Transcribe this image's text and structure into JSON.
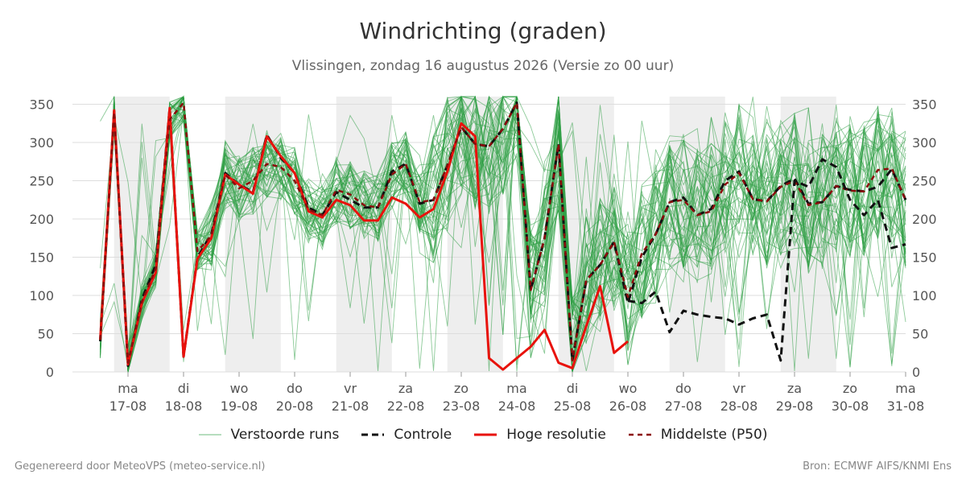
{
  "chart_data": {
    "type": "line",
    "title": "Windrichting (graden)",
    "subtitle": "Vlissingen, zondag 16 augustus 2026 (Versie zo 00 uur)",
    "ylim": [
      0,
      360
    ],
    "yticks": [
      0,
      50,
      100,
      150,
      200,
      250,
      300,
      350
    ],
    "xlim": [
      16.0,
      31.0
    ],
    "x_ticks": [
      {
        "x": 17,
        "day": "ma",
        "date": "17-08"
      },
      {
        "x": 18,
        "day": "di",
        "date": "18-08"
      },
      {
        "x": 19,
        "day": "wo",
        "date": "19-08"
      },
      {
        "x": 20,
        "day": "do",
        "date": "20-08"
      },
      {
        "x": 21,
        "day": "vr",
        "date": "21-08"
      },
      {
        "x": 22,
        "day": "za",
        "date": "22-08"
      },
      {
        "x": 23,
        "day": "zo",
        "date": "23-08"
      },
      {
        "x": 24,
        "day": "ma",
        "date": "24-08"
      },
      {
        "x": 25,
        "day": "di",
        "date": "25-08"
      },
      {
        "x": 26,
        "day": "wo",
        "date": "26-08"
      },
      {
        "x": 27,
        "day": "do",
        "date": "27-08"
      },
      {
        "x": 28,
        "day": "vr",
        "date": "28-08"
      },
      {
        "x": 29,
        "day": "za",
        "date": "29-08"
      },
      {
        "x": 30,
        "day": "zo",
        "date": "30-08"
      },
      {
        "x": 31,
        "day": "ma",
        "date": "31-08"
      }
    ],
    "shaded_bands": [
      [
        16.75,
        17.75
      ],
      [
        18.75,
        19.75
      ],
      [
        20.75,
        21.75
      ],
      [
        22.75,
        23.75
      ],
      [
        24.75,
        25.75
      ],
      [
        26.75,
        27.75
      ],
      [
        28.75,
        29.75
      ]
    ],
    "grid": true,
    "legend_position": "bottom",
    "series": [
      {
        "name": "Controle",
        "color": "#111111",
        "style": "dashed",
        "x": [
          16.5,
          16.75,
          17.0,
          17.25,
          17.5,
          17.75,
          18.0,
          18.25,
          18.5,
          18.75,
          19.0,
          19.25,
          19.5,
          19.75,
          20.0,
          20.25,
          20.5,
          20.75,
          21.0,
          21.25,
          21.5,
          21.75,
          22.0,
          22.25,
          22.5,
          22.75,
          23.0,
          23.25,
          23.5,
          23.75,
          24.0,
          24.25,
          24.5,
          24.75,
          25.0,
          25.25,
          25.5,
          25.75,
          26.0,
          26.25,
          26.5,
          26.75,
          27.0,
          27.25,
          27.5,
          27.75,
          28.0,
          28.25,
          28.5,
          28.75,
          29.0,
          29.25,
          29.5,
          29.75,
          30.0,
          30.25,
          30.5,
          30.75,
          31.0
        ],
        "values": [
          40,
          340,
          8,
          95,
          140,
          345,
          20,
          150,
          180,
          260,
          245,
          235,
          310,
          280,
          260,
          215,
          205,
          235,
          225,
          215,
          215,
          262,
          272,
          220,
          225,
          270,
          320,
          298,
          295,
          318,
          352,
          107,
          175,
          298,
          15,
          120,
          140,
          170,
          90,
          150,
          180,
          222,
          228,
          205,
          213,
          250,
          262,
          226,
          223,
          243,
          253,
          220,
          222,
          243,
          238,
          236,
          242,
          265,
          225
        ]
      },
      {
        "name": "Hoge resolutie",
        "color": "#e8120c",
        "style": "solid",
        "x": [
          16.5,
          16.75,
          17.0,
          17.25,
          17.5,
          17.75,
          18.0,
          18.25,
          18.5,
          18.75,
          19.0,
          19.25,
          19.5,
          19.75,
          20.0,
          20.25,
          20.5,
          20.75,
          21.0,
          21.25,
          21.5,
          21.75,
          22.0,
          22.25,
          22.5,
          22.75,
          23.0,
          23.25,
          23.5,
          23.75,
          24.0,
          24.25,
          24.5,
          24.75,
          25.0,
          25.25,
          25.5,
          25.75,
          26.0
        ],
        "values": [
          42,
          342,
          10,
          90,
          130,
          345,
          20,
          148,
          175,
          258,
          245,
          233,
          308,
          282,
          260,
          210,
          202,
          225,
          218,
          198,
          198,
          228,
          220,
          202,
          213,
          262,
          325,
          308,
          18,
          3,
          18,
          33,
          55,
          12,
          5,
          60,
          112,
          25,
          40
        ]
      },
      {
        "name": "Middelste (P50)",
        "color": "#8b0c0c",
        "style": "dashed",
        "x": [
          16.5,
          16.75,
          17.0,
          17.25,
          17.5,
          17.75,
          18.0,
          18.25,
          18.5,
          18.75,
          19.0,
          19.25,
          19.5,
          19.75,
          20.0,
          20.25,
          20.5,
          20.75,
          21.0,
          21.25,
          21.5,
          21.75,
          22.0,
          22.25,
          22.5,
          22.75,
          23.0,
          23.25,
          23.5,
          23.75,
          24.0,
          24.25,
          24.5,
          24.75,
          25.0,
          25.25,
          25.5,
          25.75,
          26.0,
          26.25,
          26.5,
          26.75,
          27.0,
          27.25,
          27.5,
          27.75,
          28.0,
          28.25,
          28.5,
          28.75,
          29.0,
          29.25,
          29.5,
          29.75,
          30.0,
          30.25,
          30.5,
          30.75,
          31.0
        ],
        "values": [
          42,
          340,
          12,
          92,
          135,
          330,
          352,
          158,
          178,
          258,
          240,
          250,
          272,
          268,
          250,
          212,
          205,
          238,
          232,
          218,
          215,
          258,
          272,
          222,
          225,
          270,
          320,
          298,
          295,
          318,
          352,
          107,
          175,
          298,
          15,
          120,
          140,
          170,
          98,
          155,
          180,
          222,
          225,
          205,
          210,
          245,
          260,
          226,
          223,
          242,
          250,
          218,
          222,
          243,
          237,
          236,
          264,
          266,
          225
        ]
      },
      {
        "name": "Controle (vervolg)",
        "color": "#111111",
        "style": "dashed",
        "x": [
          26.0,
          26.25,
          26.5,
          26.75,
          27.0,
          27.25,
          27.5,
          27.75,
          28.0,
          28.25,
          28.5,
          28.75,
          29.0,
          29.25,
          29.5,
          29.75,
          30.0,
          30.25,
          30.5,
          30.75,
          31.0
        ],
        "values": [
          93,
          90,
          105,
          52,
          80,
          75,
          72,
          70,
          62,
          70,
          75,
          15,
          250,
          242,
          278,
          268,
          225,
          205,
          225,
          162,
          167
        ]
      }
    ],
    "ensemble_members": {
      "name": "Verstoorde runs",
      "color": "#2e9e44",
      "count": 50
    }
  },
  "legend": {
    "members": "Verstoorde runs",
    "control": "Controle",
    "highres": "Hoge resolutie",
    "median": "Middelste (P50)"
  },
  "footer": {
    "left": "Gegenereerd door MeteoVPS (meteo-service.nl)",
    "right": "Bron: ECMWF AIFS/KNMI Ens"
  }
}
